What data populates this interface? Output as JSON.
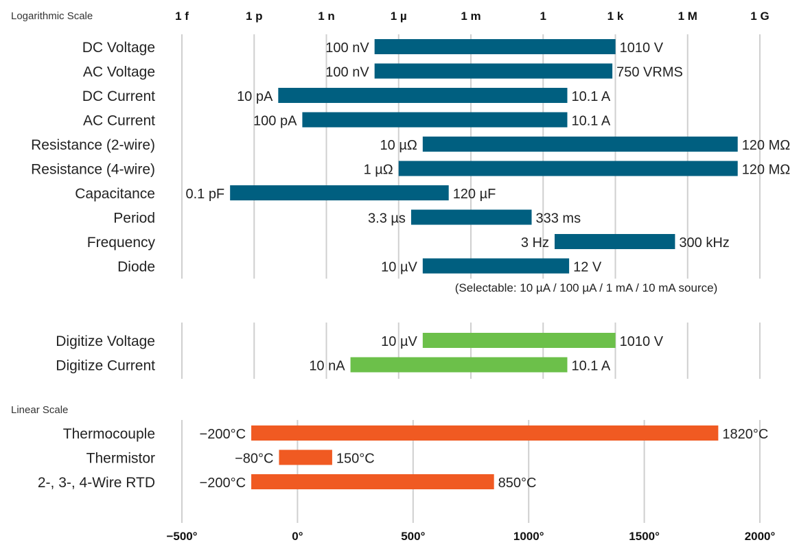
{
  "chart_data": [
    {
      "type": "bar",
      "subtype": "range",
      "title": "Logarithmic Scale",
      "scale": "log",
      "tick_labels": [
        "1 f",
        "1 p",
        "1 n",
        "1 µ",
        "1 m",
        "1",
        "1 k",
        "1 M",
        "1 G"
      ],
      "tick_values": [
        1e-15,
        1e-12,
        1e-09,
        1e-06,
        0.001,
        1,
        1000.0,
        1000000.0,
        1000000000.0
      ],
      "xlim": [
        1e-15,
        1000000000.0
      ],
      "color": "#005f80",
      "series": [
        {
          "name": "DC Voltage",
          "min": 1e-07,
          "max": 1010,
          "min_label": "100 nV",
          "max_label": "1010 V"
        },
        {
          "name": "AC Voltage",
          "min": 1e-07,
          "max": 750,
          "min_label": "100 nV",
          "max_label": "750 VRMS"
        },
        {
          "name": "DC Current",
          "min": 1e-11,
          "max": 10.1,
          "min_label": "10 pA",
          "max_label": "10.1 A"
        },
        {
          "name": "AC Current",
          "min": 1e-10,
          "max": 10.1,
          "min_label": "100 pA",
          "max_label": "10.1 A"
        },
        {
          "name": "Resistance (2-wire)",
          "min": 1e-05,
          "max": 120000000.0,
          "min_label": "10 µΩ",
          "max_label": "120 MΩ"
        },
        {
          "name": "Resistance (4-wire)",
          "min": 1e-06,
          "max": 120000000.0,
          "min_label": "1 µΩ",
          "max_label": "120 MΩ"
        },
        {
          "name": "Capacitance",
          "min": 1e-13,
          "max": 0.00012,
          "min_label": "0.1 pF",
          "max_label": "120 µF"
        },
        {
          "name": "Period",
          "min": 3.3e-06,
          "max": 0.333,
          "min_label": "3.3 µs",
          "max_label": "333 ms"
        },
        {
          "name": "Frequency",
          "min": 3,
          "max": 300000.0,
          "min_label": "3 Hz",
          "max_label": "300 kHz"
        },
        {
          "name": "Diode",
          "min": 1e-05,
          "max": 12,
          "min_label": "10 µV",
          "max_label": "12 V"
        }
      ],
      "annotation": "(Selectable: 10 µA / 100 µA / 1 mA / 10 mA source)"
    },
    {
      "type": "bar",
      "subtype": "range",
      "scale": "log",
      "xlim": [
        1e-15,
        1000000000.0
      ],
      "color": "#6cc04a",
      "series": [
        {
          "name": "Digitize Voltage",
          "min": 1e-05,
          "max": 1010,
          "min_label": "10 µV",
          "max_label": "1010 V"
        },
        {
          "name": "Digitize Current",
          "min": 1e-08,
          "max": 10.1,
          "min_label": "10 nA",
          "max_label": "10.1 A"
        }
      ]
    },
    {
      "type": "bar",
      "subtype": "range",
      "title": "Linear Scale",
      "scale": "linear",
      "xlim": [
        -500,
        2000
      ],
      "tick_values": [
        -500,
        0,
        500,
        1000,
        1500,
        2000
      ],
      "tick_labels": [
        "−500°",
        "0°",
        "500°",
        "1000°",
        "1500°",
        "2000°"
      ],
      "color": "#f05a22",
      "series": [
        {
          "name": "Thermocouple",
          "min": -200,
          "max": 1820,
          "min_label": "−200°C",
          "max_label": "1820°C"
        },
        {
          "name": "Thermistor",
          "min": -80,
          "max": 150,
          "min_label": "−80°C",
          "max_label": "150°C"
        },
        {
          "name": "2-, 3-, 4-Wire RTD",
          "min": -200,
          "max": 850,
          "min_label": "−200°C",
          "max_label": "850°C"
        }
      ]
    }
  ]
}
